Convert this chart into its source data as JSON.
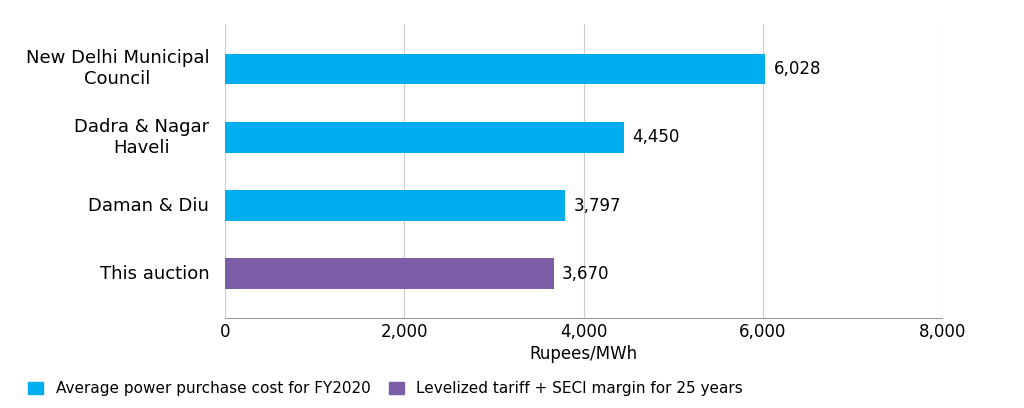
{
  "categories": [
    "New Delhi Municipal\nCouncil",
    "Dadra & Nagar\nHaveli",
    "Daman & Diu",
    "This auction"
  ],
  "values": [
    6028,
    4450,
    3797,
    3670
  ],
  "colors": [
    "#00AEEF",
    "#00AEEF",
    "#00AEEF",
    "#7B5EA7"
  ],
  "xlim": [
    0,
    8000
  ],
  "xticks": [
    0,
    2000,
    4000,
    6000,
    8000
  ],
  "xlabel": "Rupees/MWh",
  "legend": [
    {
      "label": "Average power purchase cost for FY2020",
      "color": "#00AEEF"
    },
    {
      "label": "Levelized tariff + SECI margin for 25 years",
      "color": "#7B5EA7"
    }
  ],
  "bar_height": 0.45,
  "value_labels": [
    "6,028",
    "4,450",
    "3,797",
    "3,670"
  ],
  "bg_color": "#FFFFFF",
  "text_color": "#000000",
  "font_size_ticks": 12,
  "font_size_xlabel": 12,
  "font_size_values": 12,
  "font_size_legend": 11,
  "font_size_yticks": 13
}
